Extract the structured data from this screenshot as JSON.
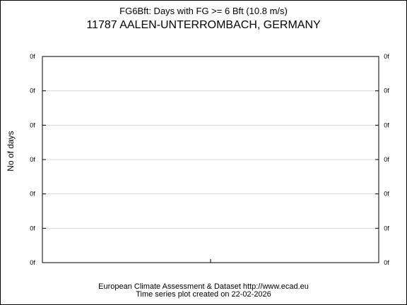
{
  "chart_data": {
    "type": "line",
    "subtitle": "FG6Bft: Days with FG >= 6 Bft (10.8 m/s)",
    "title": "11787 AALEN-UNTERROMBACH, GERMANY",
    "ylabel": "No of days",
    "xlabel": "",
    "yticks": [
      "0f",
      "0f",
      "0f",
      "0f",
      "0f",
      "0f",
      "0f"
    ],
    "grid": true,
    "series": []
  },
  "footer": {
    "line1": "European Climate Assessment & Dataset  http://www.ecad.eu",
    "line2": "Time series plot created on 22-02-2026"
  }
}
